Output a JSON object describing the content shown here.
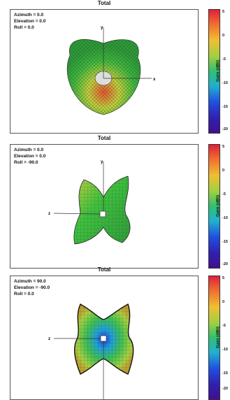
{
  "panels": [
    {
      "title": "Total",
      "azimuth": "Azimuth = 0.0",
      "elevation": "Elevation = 0.0",
      "roll": "Roll = 0.0"
    },
    {
      "title": "Total",
      "azimuth": "Azimuth = 0.0",
      "elevation": "Elevation = 0.0",
      "roll": "Roll = -90.0"
    },
    {
      "title": "Total",
      "azimuth": "Azimuth = 90.0",
      "elevation": "Elevation = -90.0",
      "roll": "Roll = 0.0"
    }
  ],
  "colorbar": {
    "label": "Gain (dBi)",
    "ticks": [
      "5",
      "0",
      "-5",
      "-10",
      "-15",
      "-20"
    ],
    "colors": [
      "#e0203a",
      "#f0c030",
      "#30c070",
      "#2050e0",
      "#401090"
    ]
  },
  "axes": {
    "x": "x",
    "y": "y",
    "z": "z"
  }
}
